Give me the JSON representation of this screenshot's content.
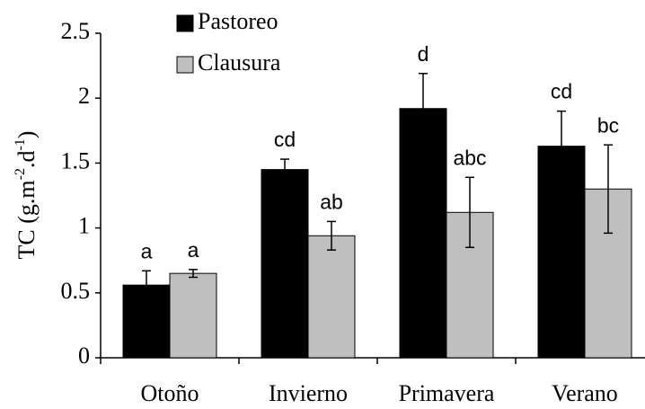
{
  "chart_data": {
    "type": "bar",
    "ylabel": [
      "TC (g.m",
      "-2",
      ".d",
      "-1",
      ")"
    ],
    "categories": [
      "Otoño",
      "Invierno",
      "Primavera",
      "Verano"
    ],
    "series": [
      {
        "name": "Pastoreo",
        "color": "#000000",
        "values": [
          0.56,
          1.45,
          1.92,
          1.63
        ],
        "errors": [
          0.11,
          0.08,
          0.27,
          0.27
        ],
        "letters": [
          "a",
          "cd",
          "d",
          "cd"
        ]
      },
      {
        "name": "Clausura",
        "color": "#bfbfbf",
        "values": [
          0.65,
          0.94,
          1.12,
          1.3
        ],
        "errors": [
          0.03,
          0.11,
          0.27,
          0.34
        ],
        "letters": [
          "a",
          "ab",
          "abc",
          "bc"
        ]
      }
    ],
    "ylim": [
      0,
      2.5
    ],
    "yticks": [
      0,
      0.5,
      1,
      1.5,
      2,
      2.5
    ],
    "grid": false,
    "legend": "top-left"
  }
}
